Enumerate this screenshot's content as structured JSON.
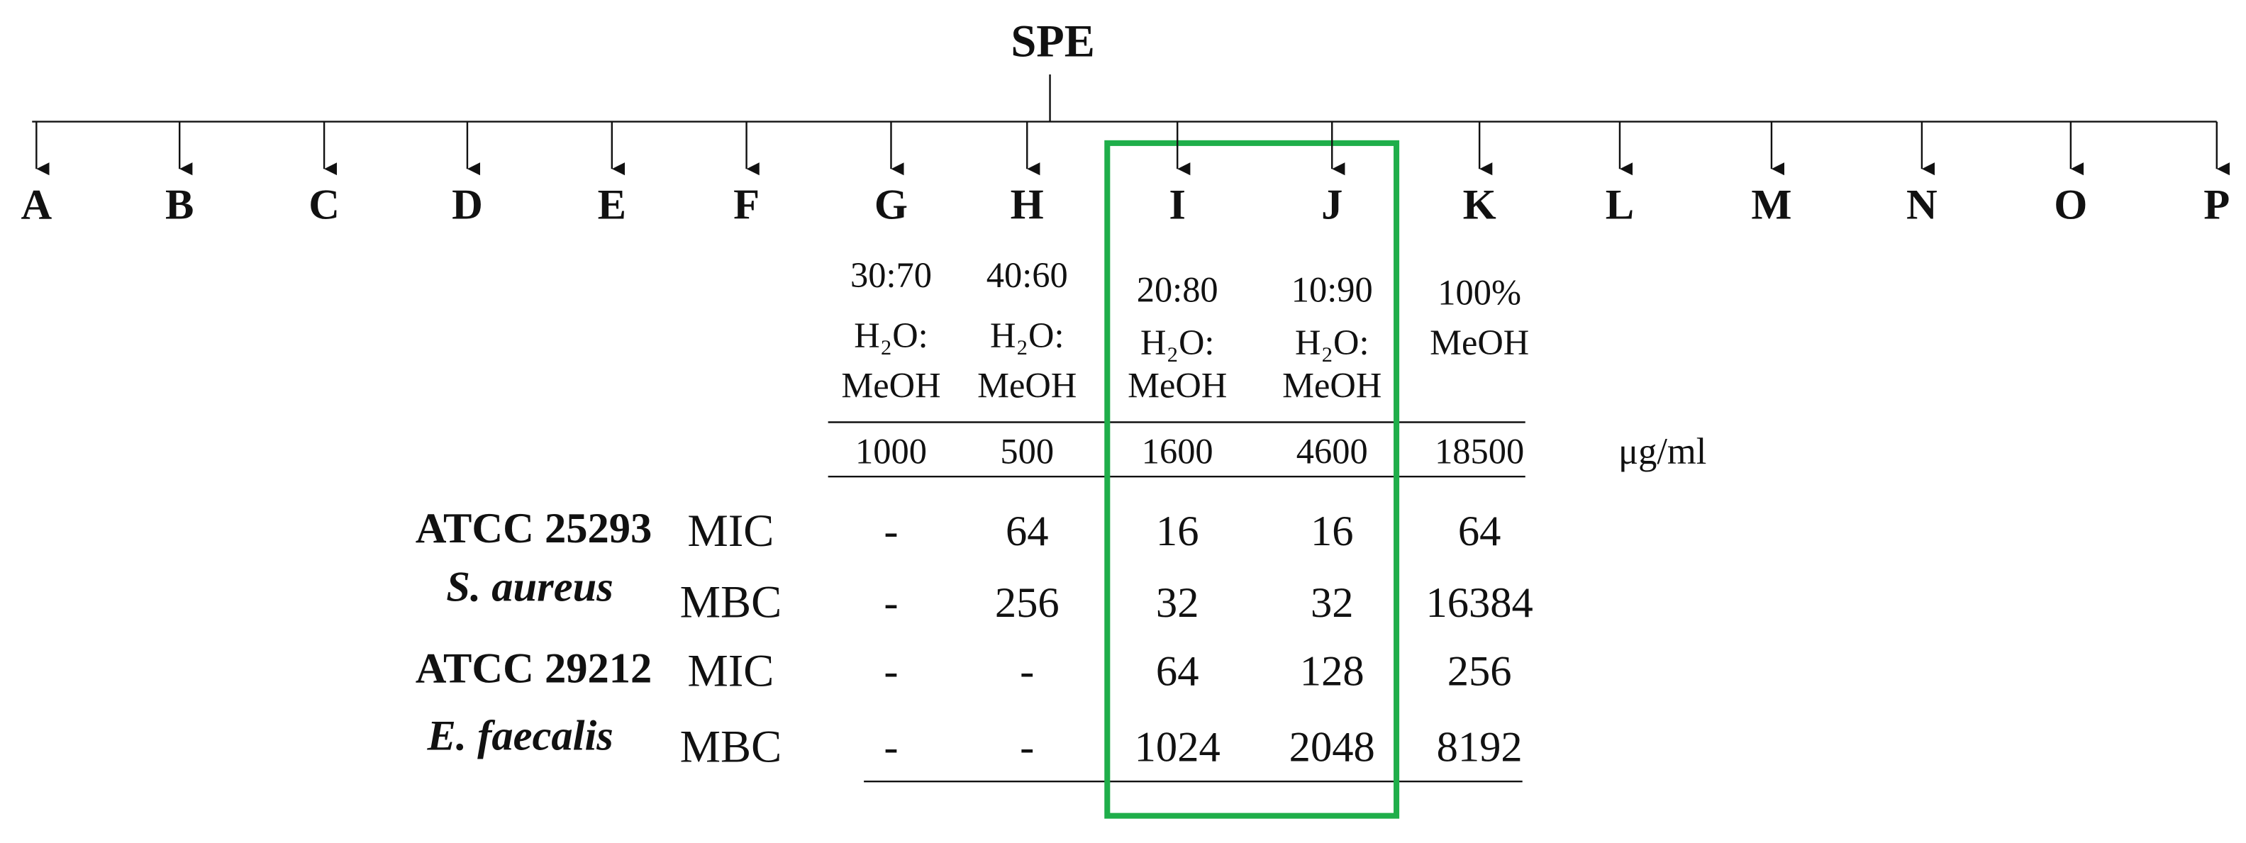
{
  "title": "SPE",
  "fractions": [
    "A",
    "B",
    "C",
    "D",
    "E",
    "F",
    "G",
    "H",
    "I",
    "J",
    "K",
    "L",
    "M",
    "N",
    "O",
    "P"
  ],
  "solvents": [
    [
      "30:70",
      "H₂O:",
      "MeOH"
    ],
    [
      "40:60",
      "H₂O:",
      "MeOH"
    ],
    [
      "20:80",
      "H₂O:",
      "MeOH"
    ],
    [
      "10:90",
      "H₂O:",
      "MeOH"
    ],
    [
      "100%",
      "MeOH"
    ]
  ],
  "concentrations": [
    1000,
    500,
    1600,
    4600,
    18500
  ],
  "unit": "μg/ml",
  "rows": [
    {
      "strain": "ATCC 25293",
      "species": "S. aureus",
      "measures": [
        {
          "name": "MIC",
          "values": [
            "-",
            64,
            16,
            16,
            64
          ]
        },
        {
          "name": "MBC",
          "values": [
            "-",
            256,
            32,
            32,
            16384
          ]
        }
      ]
    },
    {
      "strain": "ATCC 29212",
      "species": "E. faecalis",
      "measures": [
        {
          "name": "MIC",
          "values": [
            "-",
            "-",
            64,
            128,
            256
          ]
        },
        {
          "name": "MBC",
          "values": [
            "-",
            "-",
            1024,
            2048,
            8192
          ]
        }
      ]
    }
  ]
}
